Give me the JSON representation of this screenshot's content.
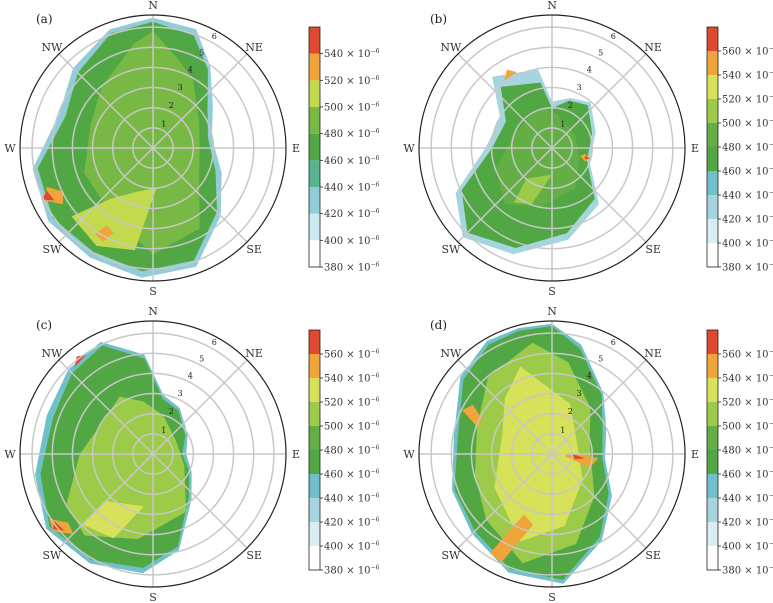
{
  "chart_data": [
    {
      "type": "heatmap",
      "panel": "(a)",
      "directions": [
        "N",
        "NE",
        "E",
        "SE",
        "S",
        "SW",
        "W",
        "NW"
      ],
      "ring_labels": [
        "1",
        "2",
        "3",
        "4",
        "5",
        "6"
      ],
      "colorbar": {
        "exponent": "−6",
        "levels": [
          380,
          400,
          420,
          440,
          460,
          480,
          500,
          520,
          540
        ],
        "colors": [
          "#ffffff",
          "#cce9ef",
          "#91cdd9",
          "#59b58f",
          "#52a745",
          "#78b845",
          "#c3da4e",
          "#f0a43a",
          "#e04830"
        ]
      }
    },
    {
      "type": "heatmap",
      "panel": "(b)",
      "directions": [
        "N",
        "NE",
        "E",
        "SE",
        "S",
        "SW",
        "W",
        "NW"
      ],
      "ring_labels": [
        "1",
        "2",
        "3",
        "4",
        "5",
        "6"
      ],
      "colorbar": {
        "exponent": "−6",
        "levels": [
          380,
          400,
          420,
          440,
          460,
          480,
          500,
          520,
          540,
          560
        ],
        "colors": [
          "#ffffff",
          "#d8eef2",
          "#a5d6e0",
          "#6fc0c8",
          "#52a745",
          "#63ae45",
          "#9ccb4a",
          "#d7e15a",
          "#f0a43a",
          "#e04830"
        ]
      }
    },
    {
      "type": "heatmap",
      "panel": "(c)",
      "directions": [
        "N",
        "NE",
        "E",
        "SE",
        "S",
        "SW",
        "W",
        "NW"
      ],
      "ring_labels": [
        "1",
        "2",
        "3",
        "4",
        "5",
        "6"
      ],
      "colorbar": {
        "exponent": "−6",
        "levels": [
          380,
          400,
          420,
          440,
          460,
          480,
          500,
          520,
          540,
          560
        ],
        "colors": [
          "#ffffff",
          "#d8eef2",
          "#a5d6e0",
          "#6fc0c8",
          "#52a745",
          "#63ae45",
          "#9ccb4a",
          "#d7e15a",
          "#f0a43a",
          "#e04830"
        ]
      }
    },
    {
      "type": "heatmap",
      "panel": "(d)",
      "directions": [
        "N",
        "NE",
        "E",
        "SE",
        "S",
        "SW",
        "W",
        "NW"
      ],
      "ring_labels": [
        "1",
        "2",
        "3",
        "4",
        "5",
        "6"
      ],
      "colorbar": {
        "exponent": "−6",
        "levels": [
          380,
          400,
          420,
          440,
          460,
          480,
          500,
          520,
          540,
          560
        ],
        "colors": [
          "#ffffff",
          "#d8eef2",
          "#a5d6e0",
          "#6fc0c8",
          "#52a745",
          "#63ae45",
          "#9ccb4a",
          "#d7e15a",
          "#f0a43a",
          "#e04830"
        ]
      }
    }
  ]
}
